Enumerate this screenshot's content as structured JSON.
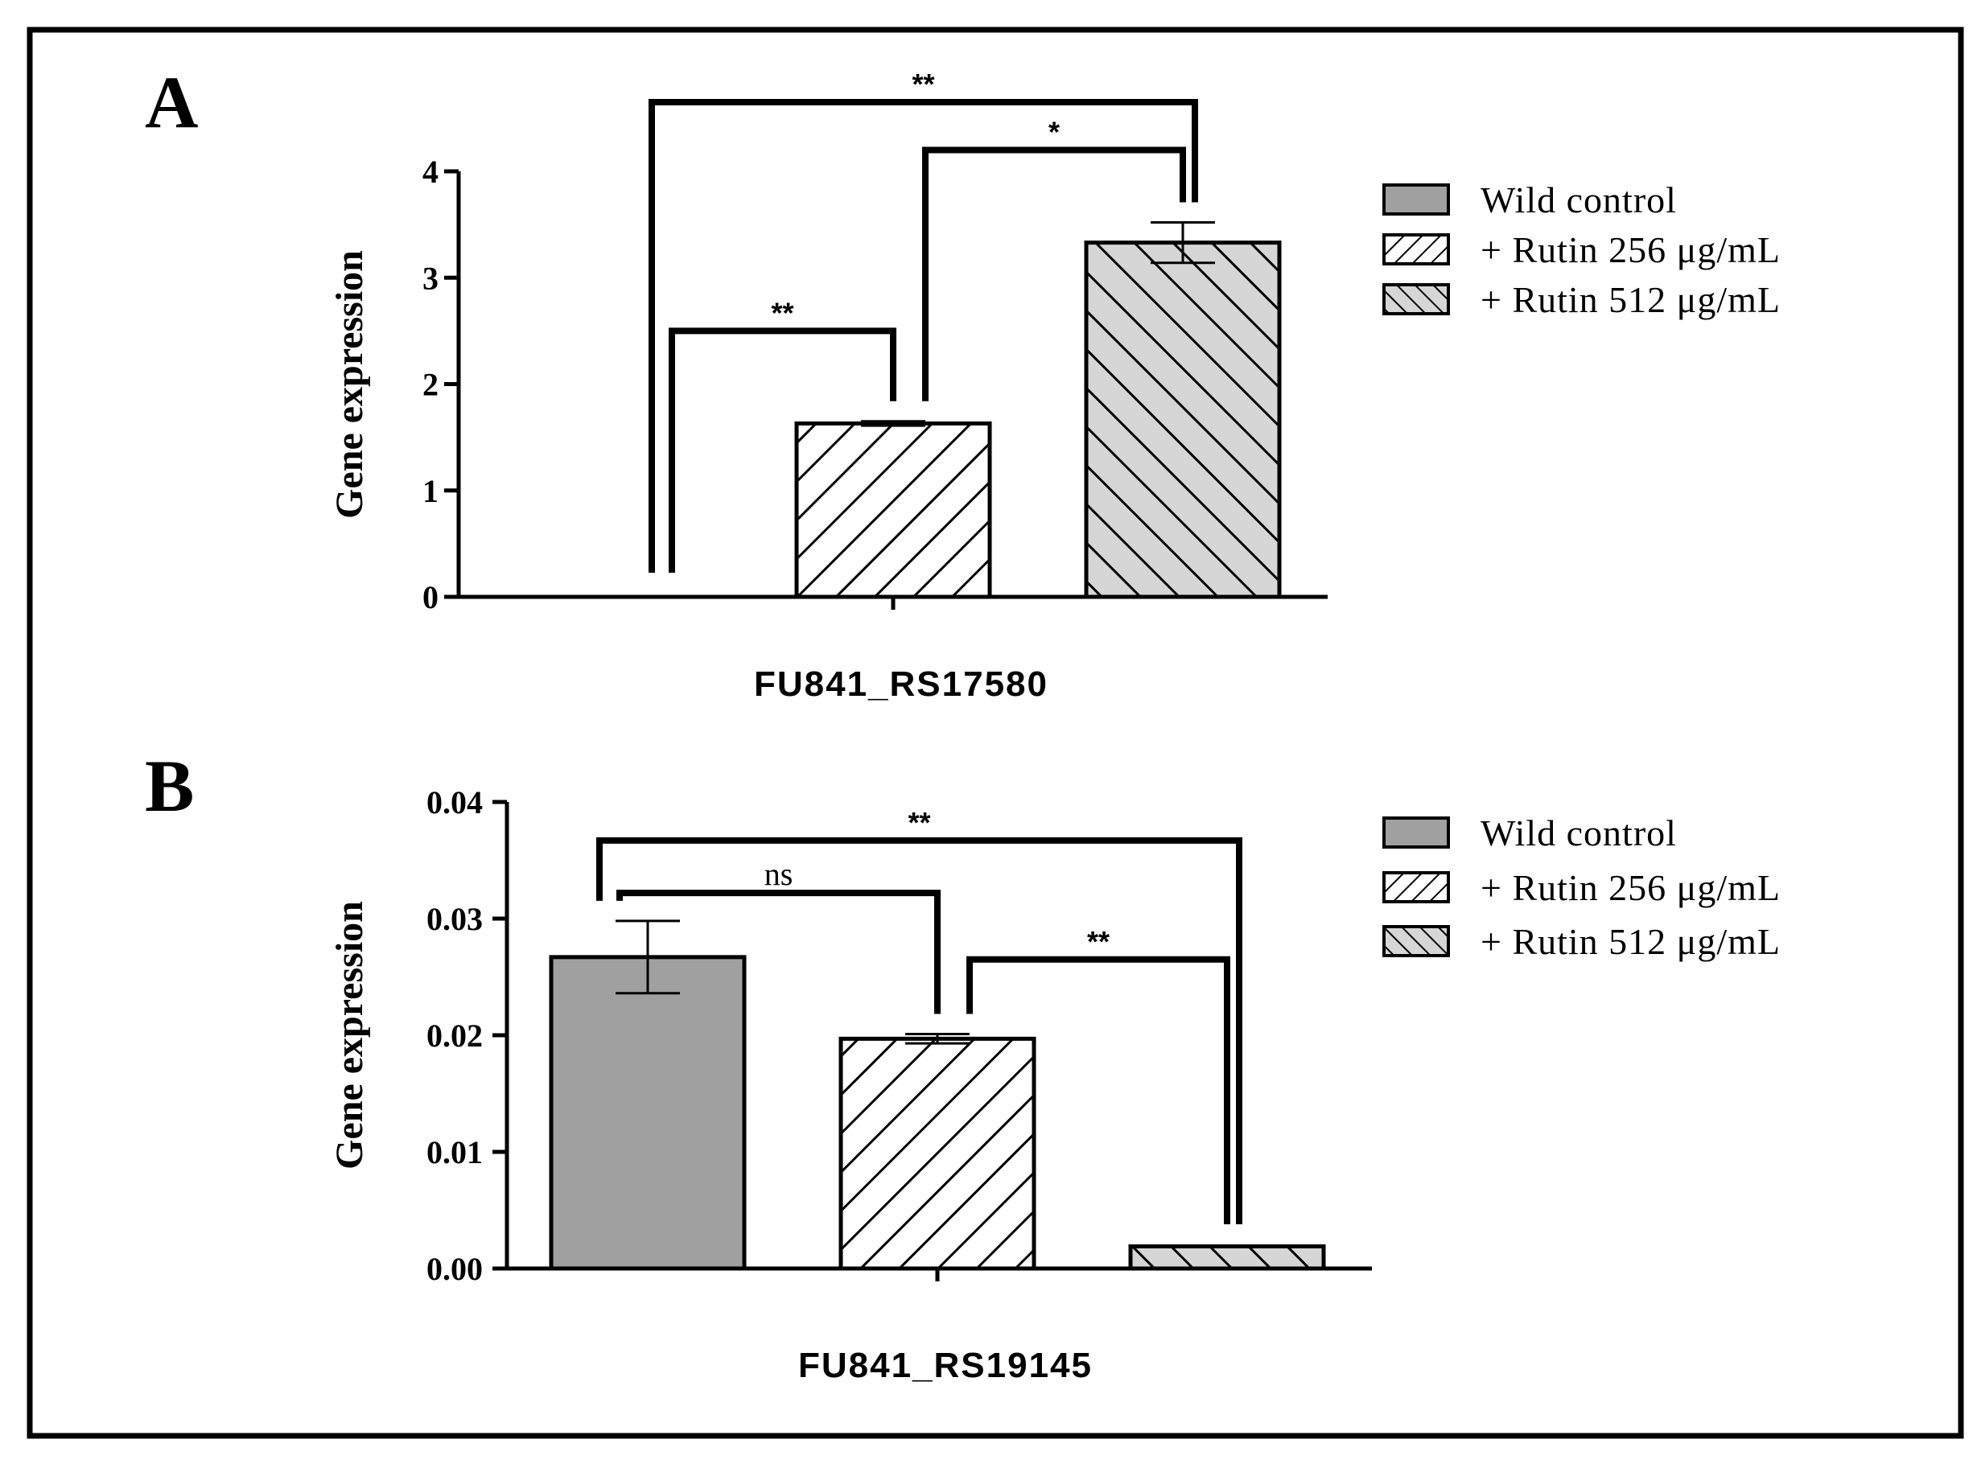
{
  "figure": {
    "colors": {
      "wild_control": "#a0a0a0",
      "hatch_bg": "#ffffff",
      "hatch_bg_512": "#d6d6d6",
      "hatch_line": "#000000"
    }
  },
  "chart_data": [
    {
      "panel": "A",
      "type": "bar",
      "xlabel": "FU841_RS17580",
      "ylabel": "Gene expression",
      "ylim": [
        0,
        4
      ],
      "yticks": [
        "0",
        "1",
        "2",
        "3",
        "4"
      ],
      "ytick_values": [
        0,
        1,
        2,
        3,
        4
      ],
      "categories": [
        "Wild control",
        "+ Rutin 256 μg/mL",
        "+ Rutin 512 μg/mL"
      ],
      "series": [
        {
          "name": "Wild control",
          "value": 0.0,
          "error": 0.0,
          "pattern": "solid"
        },
        {
          "name": "+ Rutin 256 μg/mL",
          "value": 1.63,
          "error": 0.02,
          "pattern": "hatch-forward"
        },
        {
          "name": "+ Rutin 512 μg/mL",
          "value": 3.33,
          "error": 0.19,
          "pattern": "hatch-back"
        }
      ],
      "significance": [
        {
          "from": 0,
          "to": 1,
          "label": "**",
          "level": 2.5
        },
        {
          "from": 1,
          "to": 2,
          "label": "*",
          "level": 4.2
        },
        {
          "from": 0,
          "to": 2,
          "label": "**",
          "level": 4.65
        }
      ],
      "legend": {
        "position": "top-right",
        "items": [
          "Wild control",
          "+ Rutin 256 μg/mL",
          "+ Rutin 512 μg/mL"
        ]
      }
    },
    {
      "panel": "B",
      "type": "bar",
      "xlabel": "FU841_RS19145",
      "ylabel": "Gene expression",
      "ylim": [
        0,
        0.04
      ],
      "yticks": [
        "0.00",
        "0.01",
        "0.02",
        "0.03",
        "0.04"
      ],
      "ytick_values": [
        0,
        0.01,
        0.02,
        0.03,
        0.04
      ],
      "categories": [
        "Wild control",
        "+ Rutin 256 μg/mL",
        "+ Rutin 512 μg/mL"
      ],
      "series": [
        {
          "name": "Wild control",
          "value": 0.0267,
          "error": 0.0031,
          "pattern": "solid"
        },
        {
          "name": "+ Rutin 256 μg/mL",
          "value": 0.0197,
          "error": 0.0004,
          "pattern": "hatch-forward"
        },
        {
          "name": "+ Rutin 512 μg/mL",
          "value": 0.0019,
          "error": 0.0,
          "pattern": "hatch-back"
        }
      ],
      "significance": [
        {
          "from": 0,
          "to": 1,
          "label": "ns",
          "level": 0.0322
        },
        {
          "from": 1,
          "to": 2,
          "label": "**",
          "level": 0.0265
        },
        {
          "from": 0,
          "to": 2,
          "label": "**",
          "level": 0.0367
        }
      ],
      "legend": {
        "position": "top-right",
        "items": [
          "Wild control",
          "+ Rutin 256 μg/mL",
          "+ Rutin 512 μg/mL"
        ]
      }
    }
  ]
}
